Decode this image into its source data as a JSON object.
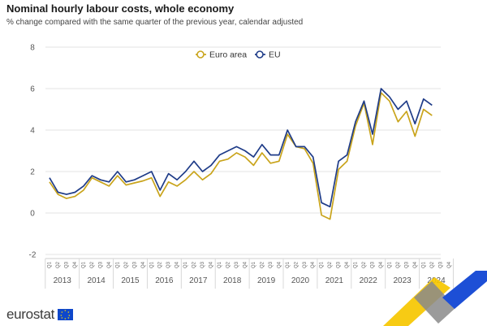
{
  "title": "Nominal hourly labour costs, whole economy",
  "subtitle": "% change compared with the same quarter of the previous year, calendar adjusted",
  "logo_text": "eurostat",
  "colors": {
    "euro_area": "#c9a41b",
    "eu": "#1f3c88"
  },
  "chart_data": {
    "type": "line",
    "ylim": [
      -2,
      8
    ],
    "yticks": [
      "8",
      "6",
      "4",
      "2",
      "0",
      "-2"
    ],
    "years": [
      "2013",
      "2014",
      "2015",
      "2016",
      "2017",
      "2018",
      "2019",
      "2020",
      "2021",
      "2022",
      "2023",
      "2024"
    ],
    "quarters": [
      "Q1",
      "Q2",
      "Q3",
      "Q4"
    ],
    "legend": {
      "position": "top-center"
    },
    "series": [
      {
        "name": "Euro area",
        "color": "#c9a41b",
        "values": [
          1.5,
          0.9,
          0.7,
          0.8,
          1.1,
          1.7,
          1.5,
          1.3,
          1.8,
          1.35,
          1.45,
          1.55,
          1.7,
          0.8,
          1.5,
          1.3,
          1.6,
          2.0,
          1.6,
          1.9,
          2.5,
          2.6,
          2.9,
          2.7,
          2.3,
          2.9,
          2.4,
          2.5,
          3.8,
          3.2,
          3.1,
          2.4,
          -0.1,
          -0.3,
          2.1,
          2.5,
          4.2,
          5.3,
          3.3,
          5.8,
          5.4,
          4.4,
          4.9,
          3.7,
          5.0,
          4.7
        ]
      },
      {
        "name": "EU",
        "color": "#1f3c88",
        "values": [
          1.7,
          1.0,
          0.9,
          1.0,
          1.3,
          1.8,
          1.6,
          1.5,
          2.0,
          1.5,
          1.6,
          1.8,
          2.0,
          1.1,
          1.9,
          1.6,
          2.0,
          2.5,
          2.0,
          2.3,
          2.8,
          3.0,
          3.2,
          3.0,
          2.7,
          3.3,
          2.8,
          2.8,
          4.0,
          3.2,
          3.2,
          2.7,
          0.5,
          0.3,
          2.5,
          2.8,
          4.4,
          5.4,
          3.8,
          6.0,
          5.6,
          5.0,
          5.4,
          4.3,
          5.5,
          5.2
        ]
      }
    ]
  }
}
